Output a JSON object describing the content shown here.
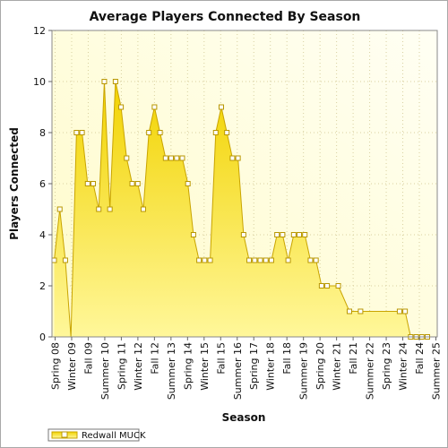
{
  "chart_data": {
    "type": "area",
    "title": "Average Players Connected By Season",
    "xlabel": "Season",
    "ylabel": "Players Connected",
    "ylim": [
      0,
      12
    ],
    "yticks": [
      0,
      2,
      4,
      6,
      8,
      10,
      12
    ],
    "x_tick_labels": [
      "Spring 08",
      "Winter 09",
      "Fall 09",
      "Summer 10",
      "Spring 11",
      "Winter 12",
      "Fall 12",
      "Summer 13",
      "Spring 14",
      "Winter 15",
      "Fall 15",
      "Summer 16",
      "Spring 17",
      "Winter 18",
      "Fall 18",
      "Summer 19",
      "Spring 20",
      "Winter 21",
      "Fall 21",
      "Summer 22",
      "Spring 23",
      "Winter 24",
      "Fall 24",
      "Summer 25"
    ],
    "grid": true,
    "legend_position": "bottom-left",
    "colors": {
      "fill_top": "#f5d800",
      "fill_bottom": "#fff58a",
      "line": "#c9a400",
      "marker_fill": "#ffffff",
      "marker_edge": "#b89600",
      "plot_bg": "#fffde0"
    },
    "series": [
      {
        "name": "Redwall MUCK",
        "values": [
          3,
          5,
          3,
          0,
          8,
          8,
          6,
          6,
          5,
          10,
          5,
          10,
          9,
          7,
          6,
          6,
          5,
          8,
          9,
          8,
          7,
          7,
          7,
          7,
          6,
          4,
          3,
          3,
          3,
          8,
          9,
          8,
          7,
          7,
          4,
          3,
          3,
          3,
          3,
          3,
          4,
          4,
          3,
          4,
          4,
          4,
          3,
          3,
          2,
          2,
          null,
          2,
          null,
          1,
          null,
          1,
          null,
          null,
          null,
          null,
          null,
          null,
          1,
          1,
          0,
          0,
          0,
          0
        ],
        "markers": [
          true,
          true,
          true,
          false,
          true,
          true,
          true,
          true,
          true,
          true,
          true,
          true,
          true,
          true,
          true,
          true,
          true,
          true,
          true,
          true,
          true,
          true,
          true,
          true,
          true,
          true,
          true,
          true,
          true,
          true,
          true,
          true,
          true,
          true,
          true,
          true,
          true,
          true,
          true,
          true,
          true,
          true,
          true,
          true,
          true,
          true,
          true,
          true,
          true,
          true,
          false,
          true,
          false,
          true,
          false,
          true,
          false,
          false,
          false,
          false,
          false,
          false,
          true,
          true,
          true,
          true,
          true,
          true
        ]
      }
    ]
  }
}
